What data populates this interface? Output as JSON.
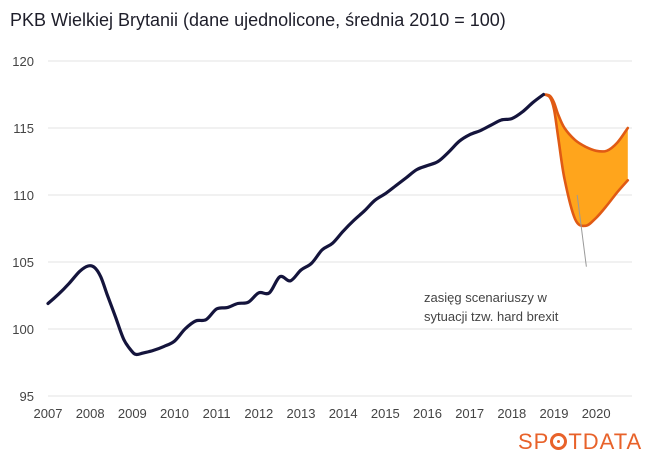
{
  "chart_data": {
    "type": "line",
    "title": "PKB Wielkiej Brytanii (dane ujednolicone, średnia 2010 = 100)",
    "xlabel": "",
    "ylabel": "",
    "xlim": [
      2007,
      2020.85
    ],
    "ylim": [
      95,
      120
    ],
    "yticks": [
      95,
      100,
      105,
      110,
      115,
      120
    ],
    "xticks": [
      2007,
      2008,
      2009,
      2010,
      2011,
      2012,
      2013,
      2014,
      2015,
      2016,
      2017,
      2018,
      2019,
      2020
    ],
    "grid": "horizontal",
    "series": [
      {
        "name": "PKB",
        "color": "#14143c",
        "x": [
          2007.0,
          2007.25,
          2007.5,
          2007.75,
          2007.95,
          2008.1,
          2008.25,
          2008.4,
          2008.6,
          2008.8,
          2009.0,
          2009.1,
          2009.25,
          2009.5,
          2009.75,
          2010.0,
          2010.25,
          2010.5,
          2010.75,
          2011.0,
          2011.25,
          2011.5,
          2011.75,
          2012.0,
          2012.25,
          2012.5,
          2012.75,
          2013.0,
          2013.25,
          2013.5,
          2013.75,
          2014.0,
          2014.25,
          2014.5,
          2014.75,
          2015.0,
          2015.25,
          2015.5,
          2015.75,
          2016.0,
          2016.25,
          2016.5,
          2016.75,
          2017.0,
          2017.25,
          2017.5,
          2017.75,
          2018.0,
          2018.25,
          2018.5,
          2018.75
        ],
        "values": [
          101.9,
          102.6,
          103.4,
          104.3,
          104.7,
          104.6,
          103.9,
          102.6,
          100.9,
          99.2,
          98.3,
          98.1,
          98.2,
          98.4,
          98.7,
          99.1,
          100.0,
          100.6,
          100.7,
          101.5,
          101.6,
          101.9,
          102.0,
          102.7,
          102.7,
          103.9,
          103.6,
          104.4,
          104.9,
          105.9,
          106.4,
          107.3,
          108.1,
          108.8,
          109.6,
          110.1,
          110.7,
          111.3,
          111.9,
          112.2,
          112.5,
          113.2,
          114.0,
          114.5,
          114.8,
          115.2,
          115.6,
          115.7,
          116.2,
          116.9,
          117.5
        ]
      }
    ],
    "scenario_band": {
      "name": "hard brexit",
      "fill": "#ffa51c",
      "stroke": "#e05a14",
      "x": [
        2018.75,
        2018.9,
        2019.0,
        2019.1,
        2019.25,
        2019.5,
        2019.75,
        2020.0,
        2020.25,
        2020.5,
        2020.75
      ],
      "upper": [
        117.5,
        117.4,
        116.9,
        116.0,
        115.0,
        114.1,
        113.6,
        113.3,
        113.3,
        113.9,
        115.0
      ],
      "lower": [
        117.5,
        117.3,
        116.4,
        114.3,
        111.2,
        108.2,
        107.7,
        108.3,
        109.2,
        110.2,
        111.1
      ]
    },
    "annotation": {
      "lines": [
        "zasięg scenariuszy w",
        "sytuacji tzw. hard brexit"
      ],
      "points_to": {
        "x": 2019.55,
        "y": 110.0
      },
      "text_anchor_at": {
        "x": 2018.25,
        "y": 104.5
      }
    }
  },
  "brand": {
    "before": "SP",
    "after": "TDATA",
    "color": "#e8622a"
  }
}
